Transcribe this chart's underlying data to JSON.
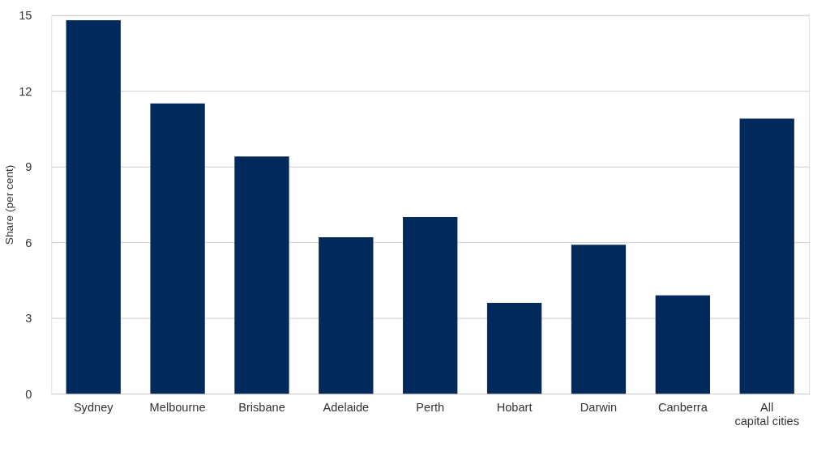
{
  "chart_data": {
    "type": "bar",
    "ylabel": "Share (per cent)",
    "categories": [
      "Sydney",
      "Melbourne",
      "Brisbane",
      "Adelaide",
      "Perth",
      "Hobart",
      "Darwin",
      "Canberra",
      "All capital cities"
    ],
    "values": [
      14.8,
      11.5,
      9.4,
      6.2,
      7.0,
      3.6,
      5.9,
      3.9,
      10.9
    ],
    "color": "#002a5c",
    "ylim": [
      0,
      15
    ],
    "yticks": [
      0,
      3,
      6,
      9,
      12,
      15
    ],
    "grid": "y"
  }
}
